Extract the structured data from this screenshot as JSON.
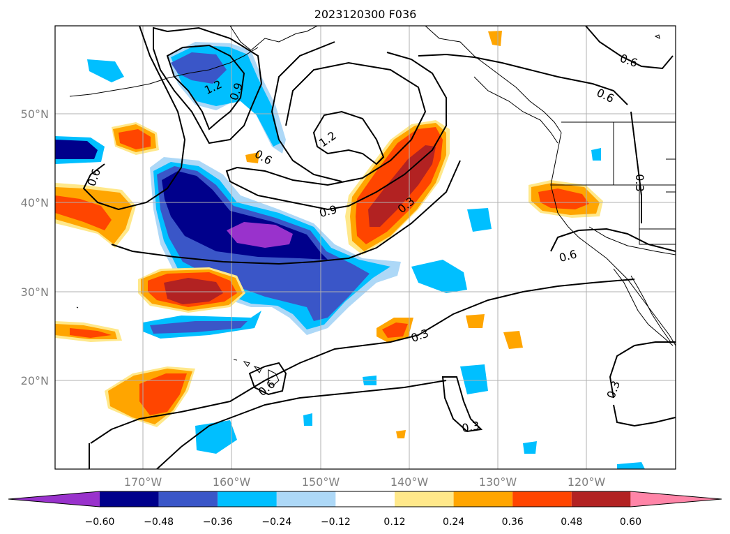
{
  "title": "2023120300 F036",
  "map": {
    "lat_labels": [
      "50°N",
      "40°N",
      "30°N",
      "20°N"
    ],
    "lon_labels": [
      "170°W",
      "160°W",
      "150°W",
      "140°W",
      "130°W",
      "120°W"
    ],
    "contour_labels": [
      "1.2",
      "0.9",
      "0.6",
      "1.2",
      "0.9",
      "0.6",
      "0.3",
      "0.6",
      "0.6",
      "0.3",
      "0.6",
      "0.3",
      "0.6",
      "0.3",
      "0.3"
    ]
  },
  "colorbar": {
    "ticks": [
      "−0.60",
      "−0.48",
      "−0.36",
      "−0.24",
      "−0.12",
      "0.12",
      "0.24",
      "0.36",
      "0.48",
      "0.60"
    ],
    "colors": [
      "#9932cc",
      "#00008b",
      "#3a56c8",
      "#00bfff",
      "#add8f7",
      "#ffffff",
      "#ffe88a",
      "#ffa500",
      "#ff4500",
      "#b22222",
      "#ff85a8"
    ]
  }
}
